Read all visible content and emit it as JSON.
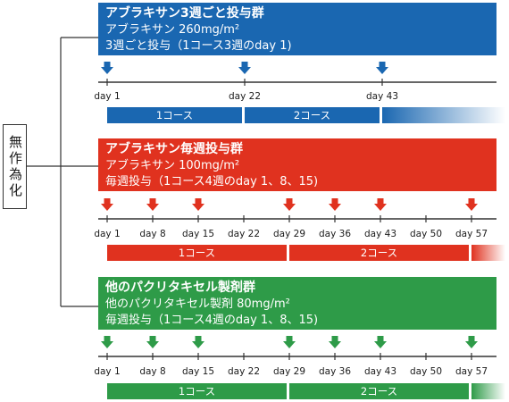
{
  "randomization": {
    "label": "無作為化"
  },
  "colors": {
    "blue": "#1a67b1",
    "red": "#e0321f",
    "green": "#2e9b48",
    "axis": "#333333",
    "connector": "#333333"
  },
  "arms": [
    {
      "title": "アブラキサン3週ごと投与群",
      "lines": [
        "アブラキサン 260mg/m²",
        "3週ごと投与（1コース3週のday 1)"
      ],
      "color": "#1a67b1",
      "dose_days": [
        1,
        22,
        43
      ],
      "tick_days": [
        1,
        22,
        43
      ],
      "cycles": [
        {
          "label": "1コース",
          "start": 1,
          "end": 22
        },
        {
          "label": "2コース",
          "start": 22,
          "end": 43
        }
      ],
      "continuation_start": 43
    },
    {
      "title": "アブラキサン毎週投与群",
      "lines": [
        "アブラキサン 100mg/m²",
        "毎週投与（1コース4週のday 1、8、15)"
      ],
      "color": "#e0321f",
      "dose_days": [
        1,
        8,
        15,
        29,
        36,
        43,
        57
      ],
      "tick_days": [
        1,
        8,
        15,
        22,
        29,
        36,
        43,
        50,
        57
      ],
      "cycles": [
        {
          "label": "1コース",
          "start": 1,
          "end": 29
        },
        {
          "label": "2コース",
          "start": 29,
          "end": 57
        }
      ],
      "continuation_start": 57
    },
    {
      "title": "他のパクリタキセル製剤群",
      "lines": [
        "他のパクリタキセル製剤 80mg/m²",
        "毎週投与（1コース4週のday 1、8、15)"
      ],
      "color": "#2e9b48",
      "dose_days": [
        1,
        8,
        15,
        29,
        36,
        43,
        57
      ],
      "tick_days": [
        1,
        8,
        15,
        22,
        29,
        36,
        43,
        50,
        57
      ],
      "cycles": [
        {
          "label": "1コース",
          "start": 1,
          "end": 29
        },
        {
          "label": "2コース",
          "start": 29,
          "end": 57
        }
      ],
      "continuation_start": 57
    }
  ]
}
